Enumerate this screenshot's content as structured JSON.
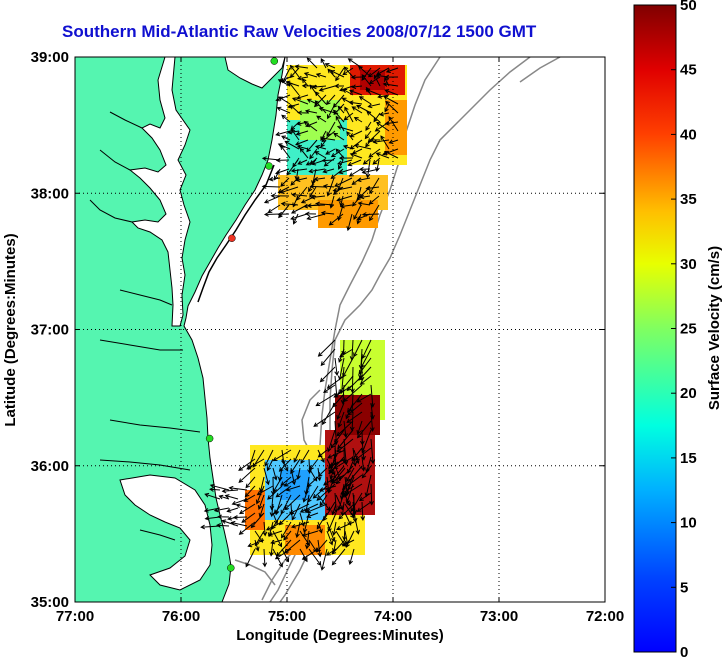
{
  "title": "Southern Mid-Atlantic Raw Velocities 2008/07/12 1500 GMT",
  "chart_data": {
    "type": "map",
    "x_axis": {
      "label": "Longitude (Degrees:Minutes)",
      "ticks": [
        "77:00",
        "76:00",
        "75:00",
        "74:00",
        "73:00",
        "72:00"
      ],
      "range": [
        -77,
        -72
      ]
    },
    "y_axis": {
      "label": "Latitude (Degrees:Minutes)",
      "ticks": [
        "35:00",
        "36:00",
        "37:00",
        "38:00",
        "39:00"
      ],
      "range": [
        35,
        39
      ]
    },
    "grid": "dotted",
    "colorbar": {
      "label": "Surface Velocity (cm/s)",
      "ticks": [
        "0",
        "5",
        "10",
        "15",
        "20",
        "25",
        "30",
        "35",
        "40",
        "45",
        "50"
      ],
      "range": [
        0,
        50
      ],
      "colormap": "jet"
    },
    "stations": [
      {
        "lon": -75.12,
        "lat": 38.97,
        "color": "#22dd22"
      },
      {
        "lon": -75.17,
        "lat": 38.2,
        "color": "#22dd22"
      },
      {
        "lon": -75.52,
        "lat": 37.67,
        "color": "#ee3322"
      },
      {
        "lon": -75.73,
        "lat": 36.2,
        "color": "#22dd22"
      },
      {
        "lon": -75.53,
        "lat": 35.25,
        "color": "#22dd22"
      }
    ]
  },
  "colors": {
    "land": "#55f5b0",
    "ocean": "#ffffff",
    "coastline": "#000000",
    "bathymetry": "#888888",
    "title": "#1010d0"
  }
}
